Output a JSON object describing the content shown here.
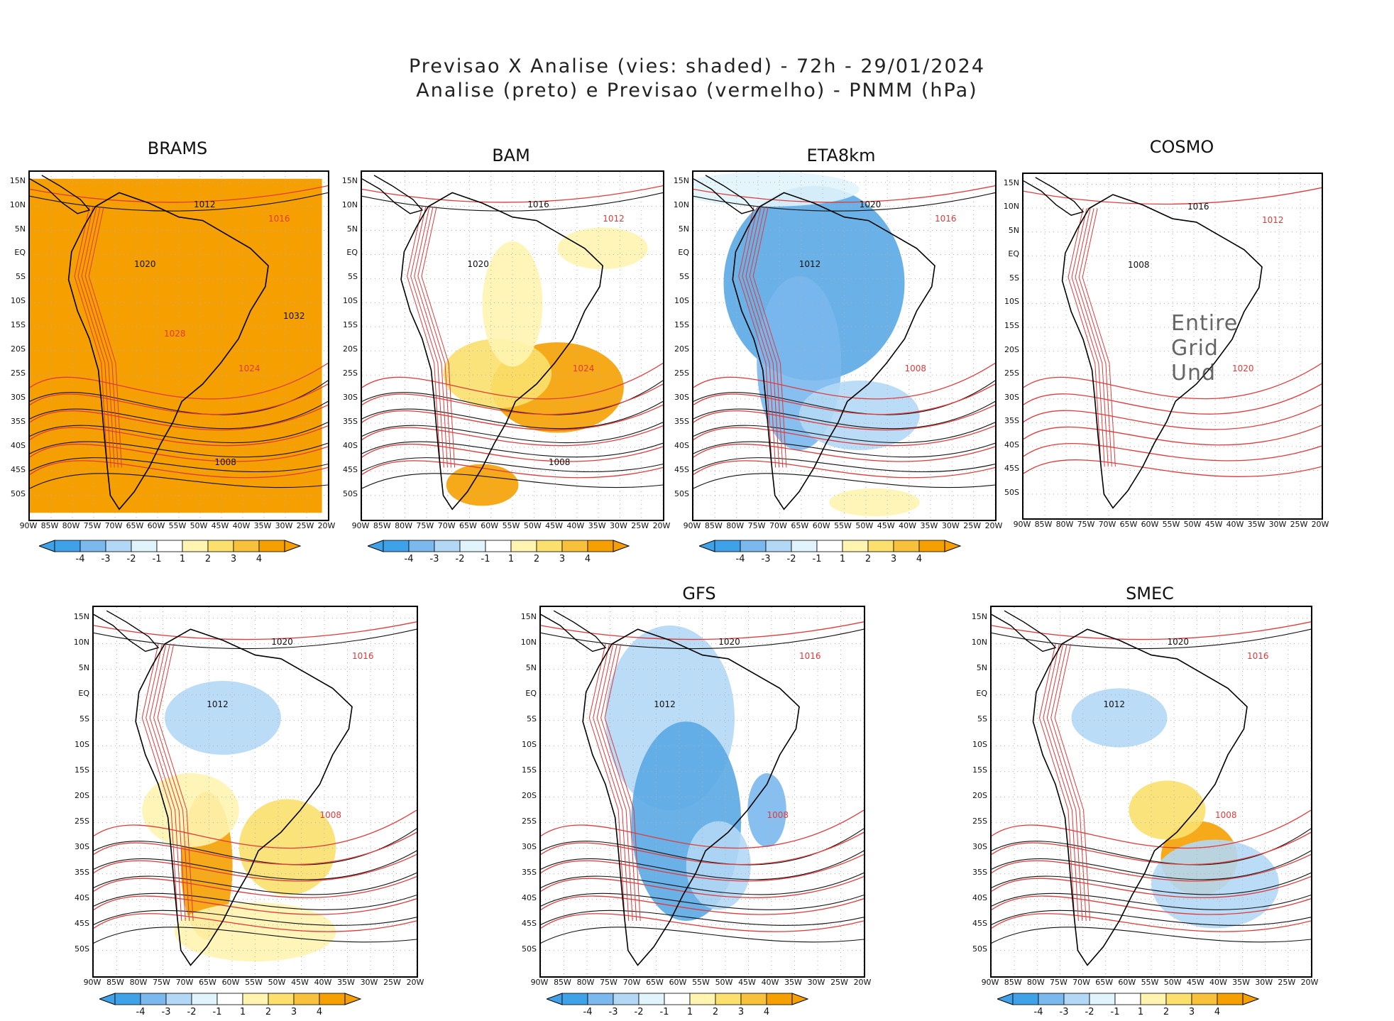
{
  "header": {
    "line1": "Previsao X Analise (vies: shaded) - 72h - 29/01/2024",
    "line2": "Analise (preto) e Previsao (vermelho) - PNMM (hPa)"
  },
  "axes": {
    "lat_labels": [
      "15N",
      "10N",
      "5N",
      "EQ",
      "5S",
      "10S",
      "15S",
      "20S",
      "25S",
      "30S",
      "35S",
      "40S",
      "45S",
      "50S"
    ],
    "lon_labels": [
      "90W",
      "85W",
      "80W",
      "75W",
      "70W",
      "65W",
      "60W",
      "55W",
      "50W",
      "45W",
      "40W",
      "35W",
      "30W",
      "25W",
      "20W"
    ]
  },
  "colorbar": {
    "labels": [
      "-4",
      "-3",
      "-2",
      "-1",
      "1",
      "2",
      "3",
      "4"
    ],
    "colors": [
      "#3fa2e8",
      "#7ab8ee",
      "#b3d8f5",
      "#e1f4fb",
      "#ffffff",
      "#fff4b0",
      "#fbe06d",
      "#f8c13b",
      "#f5a000"
    ]
  },
  "colors": {
    "analysis": "#111111",
    "forecast": "#e03a3a",
    "bias_warm": "#f5a000",
    "bias_cool": "#5aa8e6",
    "grid": "#b0b0b0"
  },
  "panels": [
    {
      "name": "BRAMS",
      "watermark": "",
      "isobar_labels": [
        "1012",
        "1016",
        "1020",
        "1024",
        "1008",
        "1028",
        "1032"
      ]
    },
    {
      "name": "BAM",
      "watermark": "",
      "isobar_labels": [
        "1016",
        "1012",
        "1020",
        "1024",
        "1008"
      ]
    },
    {
      "name": "ETA8km",
      "watermark": "",
      "isobar_labels": [
        "1020",
        "1016",
        "1012",
        "1008"
      ]
    },
    {
      "name": "COSMO",
      "watermark": "Entire Grid Und",
      "isobar_labels": [
        "1016",
        "1012",
        "1008",
        "1020"
      ]
    },
    {
      "name": "",
      "watermark": "",
      "isobar_labels": [
        "1020",
        "1016",
        "1012",
        "1008"
      ]
    },
    {
      "name": "GFS",
      "watermark": "",
      "isobar_labels": [
        "1020",
        "1016",
        "1012",
        "1008"
      ]
    },
    {
      "name": "SMEC",
      "watermark": "",
      "isobar_labels": [
        "1020",
        "1016",
        "1012",
        "1008"
      ]
    }
  ]
}
